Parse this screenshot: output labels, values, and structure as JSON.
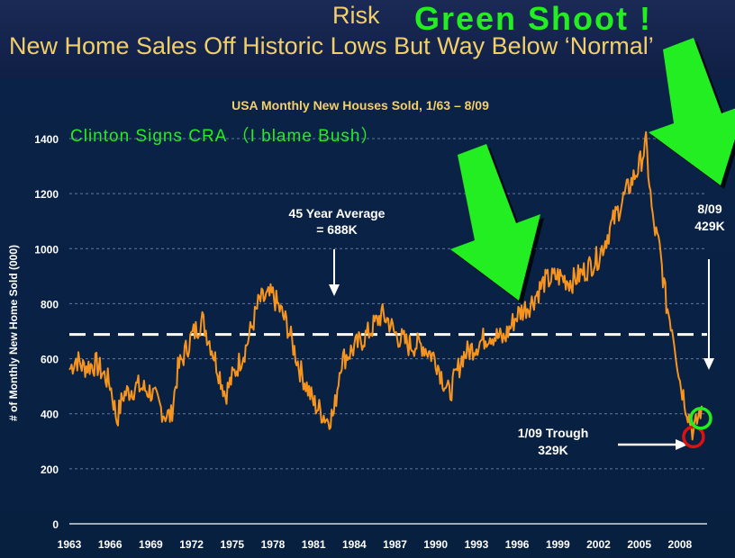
{
  "header": {
    "risk_label": "Risk",
    "green_shoot_label": "Green  Shoot !",
    "headline": "New Home Sales Off Historic Lows But Way Below ‘Normal’"
  },
  "colors": {
    "series": "#f7941d",
    "average_line": "#ffffff",
    "headline": "#f3cf6a",
    "green": "#22ee22",
    "trough_circle": "#dd1111"
  },
  "chart_data": {
    "type": "line",
    "title": "USA Monthly New Houses Sold, 1/63 – 8/09",
    "ylabel": "# of Monthly New Home Sold (000)",
    "xlabel": "",
    "ylim": [
      0,
      1400
    ],
    "xlim": [
      1963,
      2010
    ],
    "yticks": [
      "0",
      "200",
      "400",
      "600",
      "800",
      "1000",
      "1200",
      "1400"
    ],
    "xticks": [
      "1963",
      "1966",
      "1969",
      "1972",
      "1975",
      "1978",
      "1981",
      "1984",
      "1987",
      "1990",
      "1993",
      "1996",
      "1999",
      "2002",
      "2005",
      "2008"
    ],
    "grid": true,
    "series": [
      {
        "name": "New Houses Sold",
        "x": [
          1963,
          1963.5,
          1964,
          1965,
          1966,
          1966.5,
          1967,
          1968,
          1969,
          1970,
          1970.5,
          1971,
          1972,
          1972.8,
          1973.5,
          1974.5,
          1975,
          1976,
          1977,
          1978,
          1979,
          1980,
          1980.5,
          1981,
          1982,
          1982.5,
          1983,
          1984,
          1985,
          1986,
          1986.5,
          1987,
          1988,
          1989,
          1990,
          1990.5,
          1991,
          1992,
          1993,
          1994,
          1995,
          1996,
          1997,
          1998,
          1999,
          2000,
          2001,
          2002,
          2003,
          2004,
          2005,
          2005.5,
          2006,
          2006.5,
          2007,
          2007.5,
          2008,
          2008.5,
          2009,
          2009.6
        ],
        "values": [
          560,
          600,
          570,
          580,
          510,
          380,
          470,
          500,
          480,
          400,
          390,
          560,
          680,
          740,
          640,
          470,
          530,
          640,
          810,
          830,
          730,
          560,
          500,
          440,
          380,
          400,
          590,
          640,
          690,
          760,
          740,
          690,
          650,
          650,
          600,
          530,
          470,
          610,
          650,
          690,
          670,
          760,
          800,
          880,
          900,
          880,
          920,
          970,
          1090,
          1200,
          1300,
          1380,
          1100,
          1000,
          800,
          700,
          520,
          420,
          329,
          429
        ]
      }
    ],
    "reference_line": {
      "label": "45 Year Average",
      "value_label": "= 688K",
      "value": 688
    },
    "annotations": {
      "cra": "Clinton  Signs  CRA （I  blame  Bush）",
      "latest": "8/09",
      "latest_value": "429K",
      "trough": "1/09 Trough",
      "trough_value": "329K"
    },
    "points": {
      "trough": {
        "x": 2009,
        "y": 329
      },
      "latest": {
        "x": 2009.6,
        "y": 429
      }
    }
  }
}
